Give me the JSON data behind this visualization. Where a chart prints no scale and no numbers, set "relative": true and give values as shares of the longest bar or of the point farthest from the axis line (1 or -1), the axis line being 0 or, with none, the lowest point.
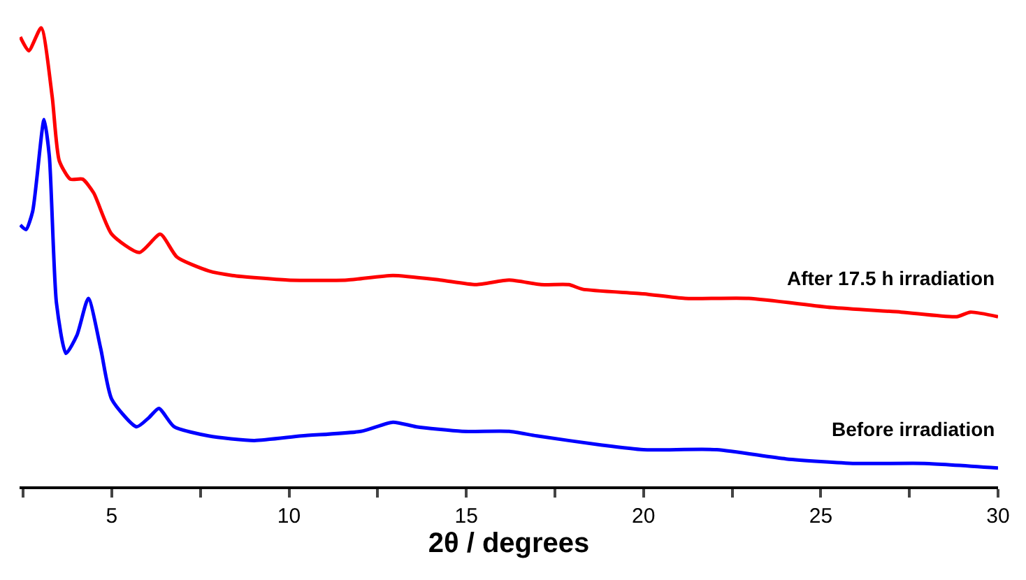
{
  "chart_data": {
    "type": "line",
    "relative": true,
    "xlabel": "2θ / degrees",
    "xlim": [
      2.4,
      30
    ],
    "xticks": [
      {
        "value": 2.5,
        "label": null
      },
      5,
      {
        "value": 7.5,
        "label": null
      },
      10,
      {
        "value": 12.5,
        "label": null
      },
      15,
      {
        "value": 17.5,
        "label": null
      },
      20,
      {
        "value": 22.5,
        "label": null
      },
      25,
      {
        "value": 27.5,
        "label": null
      },
      30
    ],
    "tick_labels": "x",
    "legend": false,
    "marker": "none",
    "line_style": "solid",
    "series": [
      {
        "name": "After 17.5 h irradiation",
        "color": "#ff0000",
        "x": [
          2.42,
          2.66,
          3.01,
          3.32,
          3.52,
          3.83,
          4.18,
          4.49,
          5.0,
          5.78,
          6.37,
          6.84,
          7.73,
          8.4,
          9.96,
          11.64,
          12.93,
          14.26,
          15.27,
          16.21,
          17.11,
          17.89,
          18.28,
          20.0,
          21.17,
          22.97,
          25.31,
          27.27,
          28.83,
          29.22,
          30
        ],
        "values": [
          0.98,
          0.95,
          1.0,
          0.85,
          0.71,
          0.67,
          0.67,
          0.64,
          0.55,
          0.51,
          0.55,
          0.5,
          0.47,
          0.46,
          0.45,
          0.45,
          0.46,
          0.45,
          0.44,
          0.45,
          0.44,
          0.44,
          0.43,
          0.42,
          0.41,
          0.41,
          0.39,
          0.38,
          0.37,
          0.38,
          0.37
        ]
      },
      {
        "name": "Before irradiation",
        "color": "#0000ff",
        "x": [
          2.42,
          2.58,
          2.77,
          3.09,
          3.24,
          3.44,
          3.71,
          4.02,
          4.34,
          4.69,
          5.0,
          5.7,
          6.05,
          6.33,
          6.76,
          7.73,
          9.02,
          10.35,
          12.03,
          12.93,
          13.59,
          14.88,
          16.21,
          16.99,
          18.83,
          20.0,
          22.07,
          24.02,
          25.98,
          27.93,
          30
        ],
        "values": [
          0.57,
          0.56,
          0.6,
          0.8,
          0.72,
          0.4,
          0.29,
          0.33,
          0.41,
          0.3,
          0.19,
          0.13,
          0.15,
          0.17,
          0.13,
          0.11,
          0.1,
          0.11,
          0.12,
          0.14,
          0.13,
          0.12,
          0.12,
          0.11,
          0.09,
          0.08,
          0.08,
          0.06,
          0.05,
          0.05,
          0.04
        ]
      }
    ]
  }
}
